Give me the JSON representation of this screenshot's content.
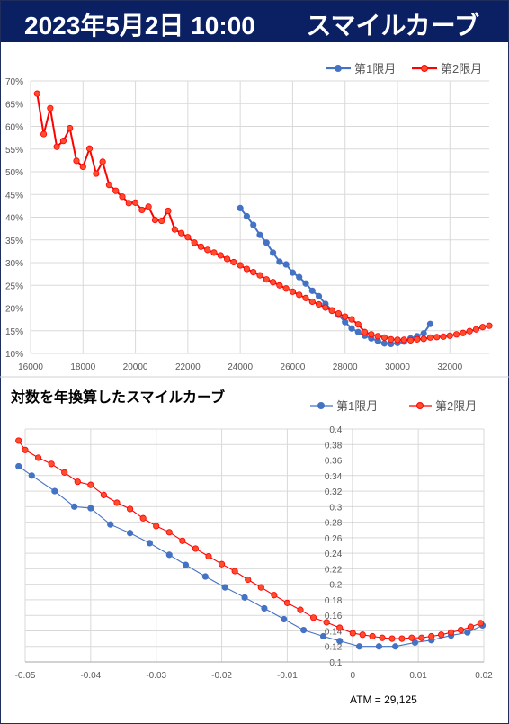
{
  "header": {
    "date_time": "2023年5月2日 10:00",
    "title": "スマイルカーブ"
  },
  "colors": {
    "header_bg": "#0b1f63",
    "series1": "#4472c4",
    "series2": "#ff0000",
    "series2_fill": "#ff4d2e"
  },
  "chart_data": [
    {
      "type": "line",
      "title": "",
      "xlabel": "",
      "ylabel": "",
      "xlim": [
        16000,
        33500
      ],
      "ylim": [
        0.1,
        0.7
      ],
      "x_ticks": [
        16000,
        18000,
        20000,
        22000,
        24000,
        26000,
        28000,
        30000,
        32000
      ],
      "y_ticks": [
        "10%",
        "15%",
        "20%",
        "25%",
        "30%",
        "35%",
        "40%",
        "45%",
        "50%",
        "55%",
        "60%",
        "65%",
        "70%"
      ],
      "grid": true,
      "legend": "top-right",
      "series": [
        {
          "name": "第1限月",
          "x": [
            24000,
            24250,
            24500,
            24750,
            25000,
            25250,
            25500,
            25750,
            26000,
            26250,
            26500,
            26750,
            27000,
            27250,
            27500,
            27750,
            28000,
            28250,
            28500,
            28750,
            29000,
            29250,
            29500,
            29750,
            30000,
            30250,
            30500,
            30750,
            31000,
            31250
          ],
          "y": [
            0.42,
            0.402,
            0.383,
            0.361,
            0.344,
            0.322,
            0.302,
            0.296,
            0.278,
            0.268,
            0.254,
            0.238,
            0.226,
            0.209,
            0.195,
            0.185,
            0.169,
            0.155,
            0.147,
            0.139,
            0.133,
            0.128,
            0.122,
            0.121,
            0.123,
            0.126,
            0.133,
            0.138,
            0.144,
            0.165
          ]
        },
        {
          "name": "第2限月",
          "x": [
            16250,
            16500,
            16750,
            17000,
            17250,
            17500,
            17750,
            18000,
            18250,
            18500,
            18750,
            19000,
            19250,
            19500,
            19750,
            20000,
            20250,
            20500,
            20750,
            21000,
            21250,
            21500,
            21750,
            22000,
            22250,
            22500,
            22750,
            23000,
            23250,
            23500,
            23750,
            24000,
            24250,
            24500,
            24750,
            25000,
            25250,
            25500,
            25750,
            26000,
            26250,
            26500,
            26750,
            27000,
            27250,
            27500,
            27750,
            28000,
            28250,
            28500,
            28750,
            29000,
            29250,
            29500,
            29750,
            30000,
            30250,
            30500,
            30750,
            31000,
            31250,
            31500,
            31750,
            32000,
            32250,
            32500,
            32750,
            33000,
            33250,
            33500
          ],
          "y": [
            0.672,
            0.583,
            0.64,
            0.555,
            0.568,
            0.596,
            0.524,
            0.511,
            0.551,
            0.496,
            0.522,
            0.471,
            0.458,
            0.445,
            0.431,
            0.432,
            0.416,
            0.423,
            0.394,
            0.392,
            0.414,
            0.373,
            0.365,
            0.356,
            0.344,
            0.335,
            0.328,
            0.322,
            0.316,
            0.308,
            0.301,
            0.294,
            0.286,
            0.279,
            0.272,
            0.263,
            0.257,
            0.25,
            0.243,
            0.236,
            0.229,
            0.222,
            0.214,
            0.208,
            0.201,
            0.194,
            0.188,
            0.181,
            0.175,
            0.164,
            0.147,
            0.142,
            0.138,
            0.135,
            0.131,
            0.13,
            0.13,
            0.129,
            0.131,
            0.132,
            0.135,
            0.136,
            0.137,
            0.139,
            0.142,
            0.145,
            0.149,
            0.153,
            0.158,
            0.161
          ]
        }
      ]
    },
    {
      "type": "line",
      "title": "対数を年換算したスマイルカーブ",
      "xlabel": "",
      "ylabel": "",
      "xlim": [
        -0.05,
        0.02
      ],
      "ylim": [
        0.1,
        0.4
      ],
      "x_ticks": [
        "-0.05",
        "-0.04",
        "-0.03",
        "-0.02",
        "-0.01",
        "0",
        "0.01",
        "0.02"
      ],
      "y_ticks": [
        "0.1",
        "0.12",
        "0.14",
        "0.16",
        "0.18",
        "0.2",
        "0.22",
        "0.24",
        "0.26",
        "0.28",
        "0.3",
        "0.32",
        "0.34",
        "0.36",
        "0.38",
        "0.4"
      ],
      "grid": true,
      "legend": "top-right",
      "annotation": "ATM = 29,125",
      "series": [
        {
          "name": "第1限月",
          "x": [
            -0.051,
            -0.049,
            -0.0455,
            -0.0425,
            -0.04,
            -0.037,
            -0.034,
            -0.031,
            -0.028,
            -0.0255,
            -0.0225,
            -0.0195,
            -0.0165,
            -0.0135,
            -0.0105,
            -0.0075,
            -0.0045,
            -0.002,
            0.001,
            0.004,
            0.0065,
            0.0095,
            0.012,
            0.015,
            0.0175,
            0.0198
          ],
          "y": [
            0.352,
            0.34,
            0.32,
            0.3,
            0.298,
            0.277,
            0.266,
            0.253,
            0.238,
            0.225,
            0.21,
            0.196,
            0.183,
            0.169,
            0.155,
            0.141,
            0.133,
            0.127,
            0.12,
            0.12,
            0.12,
            0.125,
            0.128,
            0.134,
            0.138,
            0.147
          ]
        },
        {
          "name": "第2限月",
          "x": [
            -0.051,
            -0.05,
            -0.048,
            -0.046,
            -0.044,
            -0.042,
            -0.04,
            -0.038,
            -0.036,
            -0.034,
            -0.032,
            -0.03,
            -0.028,
            -0.026,
            -0.024,
            -0.022,
            -0.02,
            -0.018,
            -0.016,
            -0.014,
            -0.012,
            -0.01,
            -0.008,
            -0.006,
            -0.004,
            -0.002,
            0.0,
            0.0015,
            0.003,
            0.0045,
            0.006,
            0.0075,
            0.009,
            0.0105,
            0.012,
            0.0135,
            0.015,
            0.0165,
            0.018,
            0.0195
          ],
          "y": [
            0.385,
            0.373,
            0.363,
            0.355,
            0.344,
            0.332,
            0.328,
            0.315,
            0.305,
            0.297,
            0.285,
            0.275,
            0.267,
            0.256,
            0.246,
            0.236,
            0.226,
            0.217,
            0.206,
            0.196,
            0.186,
            0.176,
            0.167,
            0.157,
            0.151,
            0.144,
            0.137,
            0.135,
            0.133,
            0.131,
            0.13,
            0.13,
            0.131,
            0.131,
            0.133,
            0.135,
            0.138,
            0.141,
            0.145,
            0.15
          ]
        }
      ]
    }
  ]
}
